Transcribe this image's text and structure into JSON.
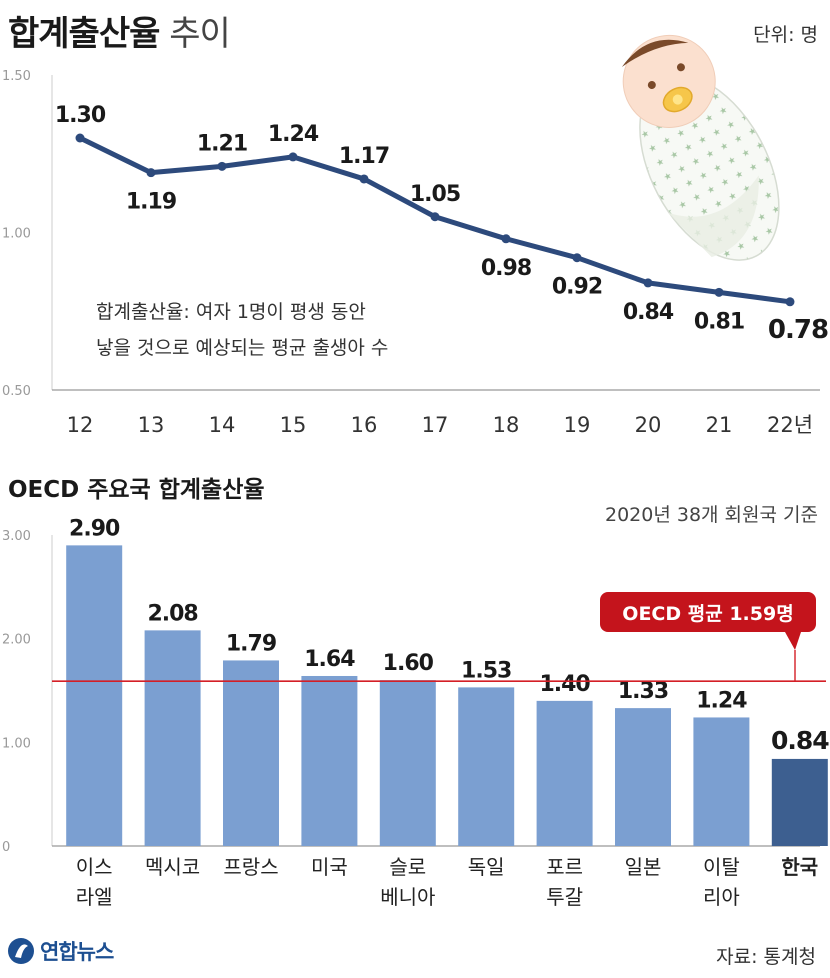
{
  "header": {
    "title_bold": "합계출산율",
    "title_light": " 추이",
    "unit": "단위: 명"
  },
  "colors": {
    "line": "#2d4a7c",
    "bar": "#7b9fd1",
    "bar_highlight": "#3d5f90",
    "average_line": "#d41f26",
    "callout_bg": "#c4141c",
    "axis": "#bbbbbb"
  },
  "chart_data": [
    {
      "type": "line",
      "x": [
        "12",
        "13",
        "14",
        "15",
        "16",
        "17",
        "18",
        "19",
        "20",
        "21",
        "22년"
      ],
      "values": [
        1.3,
        1.19,
        1.21,
        1.24,
        1.17,
        1.05,
        0.98,
        0.92,
        0.84,
        0.81,
        0.78
      ],
      "value_labels": [
        "1.30",
        "1.19",
        "1.21",
        "1.24",
        "1.17",
        "1.05",
        "0.98",
        "0.92",
        "0.84",
        "0.81",
        "0.78"
      ],
      "y_ticks": [
        "1.50",
        "1.00",
        "0.50"
      ],
      "ylim": [
        0.5,
        1.5
      ],
      "grid": false,
      "note_lines": [
        "합계출산율: 여자 1명이 평생 동안",
        "낳을 것으로 예상되는 평균 출생아 수"
      ]
    },
    {
      "type": "bar",
      "title": "OECD 주요국 합계출산율",
      "subtitle": "2020년 38개 회원국 기준",
      "categories": [
        [
          "이스",
          "라엘"
        ],
        [
          "멕시코"
        ],
        [
          "프랑스"
        ],
        [
          "미국"
        ],
        [
          "슬로",
          "베니아"
        ],
        [
          "독일"
        ],
        [
          "포르",
          "투갈"
        ],
        [
          "일본"
        ],
        [
          "이탈",
          "리아"
        ],
        [
          "한국"
        ]
      ],
      "values": [
        2.9,
        2.08,
        1.79,
        1.64,
        1.6,
        1.53,
        1.4,
        1.33,
        1.24,
        0.84
      ],
      "value_labels": [
        "2.90",
        "2.08",
        "1.79",
        "1.64",
        "1.60",
        "1.53",
        "1.40",
        "1.33",
        "1.24",
        "0.84"
      ],
      "highlight_index": 9,
      "y_ticks": [
        "3.00",
        "2.00",
        "1.00",
        "0"
      ],
      "ylim": [
        0,
        3.0
      ],
      "average": {
        "value": 1.59,
        "label": "OECD 평균 1.59명"
      }
    }
  ],
  "footer": {
    "logo_text": "연합뉴스",
    "source": "자료: 통계청"
  }
}
